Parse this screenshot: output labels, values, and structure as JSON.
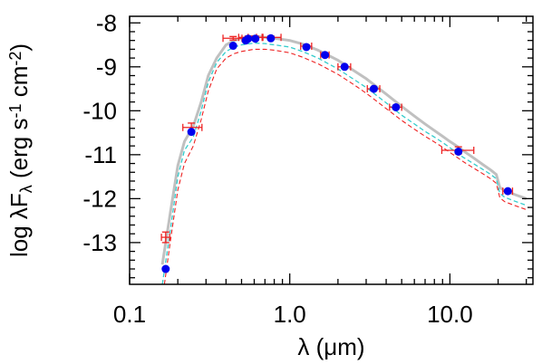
{
  "chart_data": {
    "type": "scatter",
    "xscale": "log",
    "xlim": [
      0.1,
      33
    ],
    "ylim": [
      -13.95,
      -7.85
    ],
    "xticks": [
      {
        "value": 0.1,
        "label": "0.1"
      },
      {
        "value": 1.0,
        "label": "1.0"
      },
      {
        "value": 10.0,
        "label": "10.0"
      }
    ],
    "yticks": [
      {
        "value": -8,
        "label": "-8"
      },
      {
        "value": -9,
        "label": "-9"
      },
      {
        "value": -10,
        "label": "-10"
      },
      {
        "value": -11,
        "label": "-11"
      },
      {
        "value": -12,
        "label": "-12"
      },
      {
        "value": -13,
        "label": "-13"
      }
    ],
    "xlabel": "λ (μm)",
    "ylabel": {
      "pre": "log λF",
      "sub": "λ",
      "mid1": " (erg s",
      "sup1": "-1",
      "mid2": " cm",
      "sup2": "-2",
      "post": ")"
    },
    "colors": {
      "points": "#0000ee",
      "errorbars": "#ee2222",
      "model_gray": "#c0c0c0",
      "model_cyan": "#33cccc",
      "model_red": "#ee2222"
    },
    "series": [
      {
        "kind": "photometry_points",
        "x": [
          0.168,
          0.243,
          0.443,
          0.531,
          0.55,
          0.61,
          0.762,
          1.27,
          1.66,
          2.2,
          3.35,
          4.6,
          11.3,
          23.0
        ],
        "y": [
          -13.6,
          -10.48,
          -8.52,
          -8.4,
          -8.36,
          -8.36,
          -8.35,
          -8.55,
          -8.73,
          -9.0,
          -9.5,
          -9.92,
          -10.93,
          -11.83
        ]
      },
      {
        "kind": "error_bars",
        "x": [
          0.168,
          0.243,
          0.443,
          0.55,
          0.61,
          0.762,
          1.27,
          1.66,
          2.2,
          3.35,
          4.6,
          11.3,
          23.0
        ],
        "y": [
          -12.88,
          -10.38,
          -8.35,
          -8.33,
          -8.33,
          -8.33,
          -8.53,
          -8.73,
          -9.0,
          -9.5,
          -9.92,
          -10.9,
          -11.83
        ],
        "xerr_lo": [
          0.01,
          0.028,
          0.06,
          0.07,
          0.06,
          0.09,
          0.1,
          0.1,
          0.2,
          0.3,
          0.4,
          2.4,
          1.6
        ],
        "xerr_hi": [
          0.01,
          0.04,
          0.06,
          0.07,
          0.07,
          0.12,
          0.1,
          0.1,
          0.2,
          0.3,
          0.4,
          2.8,
          1.6
        ],
        "yerr": [
          0.12,
          0.1,
          0.04,
          0.03,
          0.03,
          0.03,
          0.03,
          0.03,
          0.03,
          0.03,
          0.03,
          0.08,
          0.03
        ]
      },
      {
        "kind": "model_solid",
        "x": [
          0.16,
          0.18,
          0.2,
          0.22,
          0.25,
          0.28,
          0.31,
          0.35,
          0.4,
          0.45,
          0.5,
          0.6,
          0.7,
          0.8,
          1.0,
          1.2,
          1.5,
          2.0,
          2.5,
          3.0,
          4.0,
          5.0,
          6.0,
          7.0,
          8.0,
          9.0,
          10.0,
          11.0,
          12.0,
          14.0,
          16.0,
          18.0,
          19.5,
          20.5,
          22.0,
          26.0,
          30.0
        ],
        "y": [
          -13.5,
          -12.3,
          -11.25,
          -10.7,
          -10.35,
          -9.8,
          -9.2,
          -8.8,
          -8.5,
          -8.4,
          -8.35,
          -8.3,
          -8.33,
          -8.35,
          -8.4,
          -8.48,
          -8.62,
          -8.85,
          -9.08,
          -9.27,
          -9.62,
          -9.9,
          -10.12,
          -10.3,
          -10.45,
          -10.58,
          -10.7,
          -10.8,
          -10.9,
          -11.07,
          -11.22,
          -11.35,
          -11.45,
          -11.75,
          -11.82,
          -11.92,
          -12.0
        ]
      },
      {
        "kind": "model_dashed_cyan",
        "x": [
          0.16,
          0.18,
          0.2,
          0.22,
          0.25,
          0.28,
          0.31,
          0.35,
          0.4,
          0.45,
          0.5,
          0.6,
          0.7,
          0.8,
          1.0,
          1.2,
          1.5,
          2.0,
          2.5,
          3.0,
          4.0,
          5.0,
          6.0,
          7.0,
          8.0,
          9.0,
          10.0,
          11.0,
          12.0,
          14.0,
          16.0,
          18.0,
          19.5,
          20.5,
          22.0,
          26.0,
          30.0
        ],
        "y": [
          -13.95,
          -12.7,
          -11.5,
          -10.9,
          -10.6,
          -10.0,
          -9.35,
          -8.9,
          -8.65,
          -8.55,
          -8.5,
          -8.46,
          -8.47,
          -8.5,
          -8.55,
          -8.65,
          -8.8,
          -9.05,
          -9.28,
          -9.47,
          -9.82,
          -10.1,
          -10.3,
          -10.47,
          -10.6,
          -10.72,
          -10.84,
          -10.95,
          -11.05,
          -11.2,
          -11.33,
          -11.45,
          -11.55,
          -11.88,
          -11.97,
          -12.07,
          -12.15
        ]
      },
      {
        "kind": "model_dashed_red",
        "x": [
          0.165,
          0.18,
          0.2,
          0.22,
          0.25,
          0.28,
          0.31,
          0.35,
          0.4,
          0.45,
          0.5,
          0.6,
          0.7,
          0.8,
          1.0,
          1.2,
          1.5,
          2.0,
          2.5,
          3.0,
          4.0,
          5.0,
          6.0,
          7.0,
          8.0,
          9.0,
          10.0,
          11.0,
          12.0,
          14.0,
          16.0,
          18.0,
          19.5,
          20.5,
          22.0,
          26.0,
          30.0
        ],
        "y": [
          -13.95,
          -12.95,
          -11.8,
          -11.2,
          -10.8,
          -10.2,
          -9.55,
          -9.05,
          -8.8,
          -8.7,
          -8.65,
          -8.6,
          -8.6,
          -8.62,
          -8.68,
          -8.78,
          -8.93,
          -9.17,
          -9.4,
          -9.6,
          -9.95,
          -10.22,
          -10.42,
          -10.58,
          -10.71,
          -10.83,
          -10.95,
          -11.05,
          -11.15,
          -11.3,
          -11.43,
          -11.55,
          -11.65,
          -11.98,
          -12.07,
          -12.17,
          -12.25
        ]
      }
    ]
  }
}
